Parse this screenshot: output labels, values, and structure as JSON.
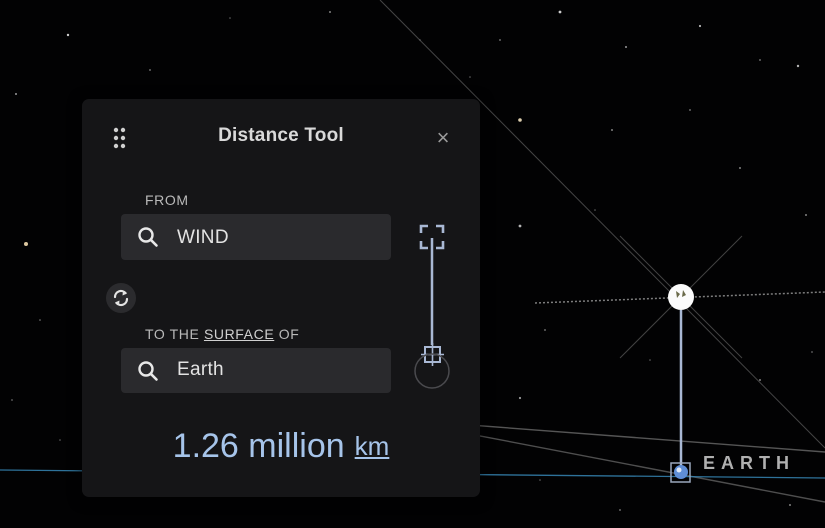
{
  "panel": {
    "title": "Distance Tool",
    "close_symbol": "×",
    "from_label": "FROM",
    "from_value": "WIND",
    "to_label_prefix": "TO THE",
    "to_label_link": "SURFACE",
    "to_label_suffix": "OF",
    "to_value": "Earth",
    "distance_value": "1.26 million",
    "distance_unit": "km"
  },
  "scene": {
    "planet_label": "EARTH",
    "icons": {
      "drag": "drag-dots-icon",
      "search": "search-icon",
      "swap": "swap-icon",
      "target": "target-bracket-icon",
      "close": "close-icon"
    },
    "colors": {
      "panel_bg": "#151517",
      "field_bg": "#2a2a2d",
      "accent": "#a6c4ea",
      "line": "#a9b8d4",
      "orbit": "#3a8fc0"
    }
  }
}
